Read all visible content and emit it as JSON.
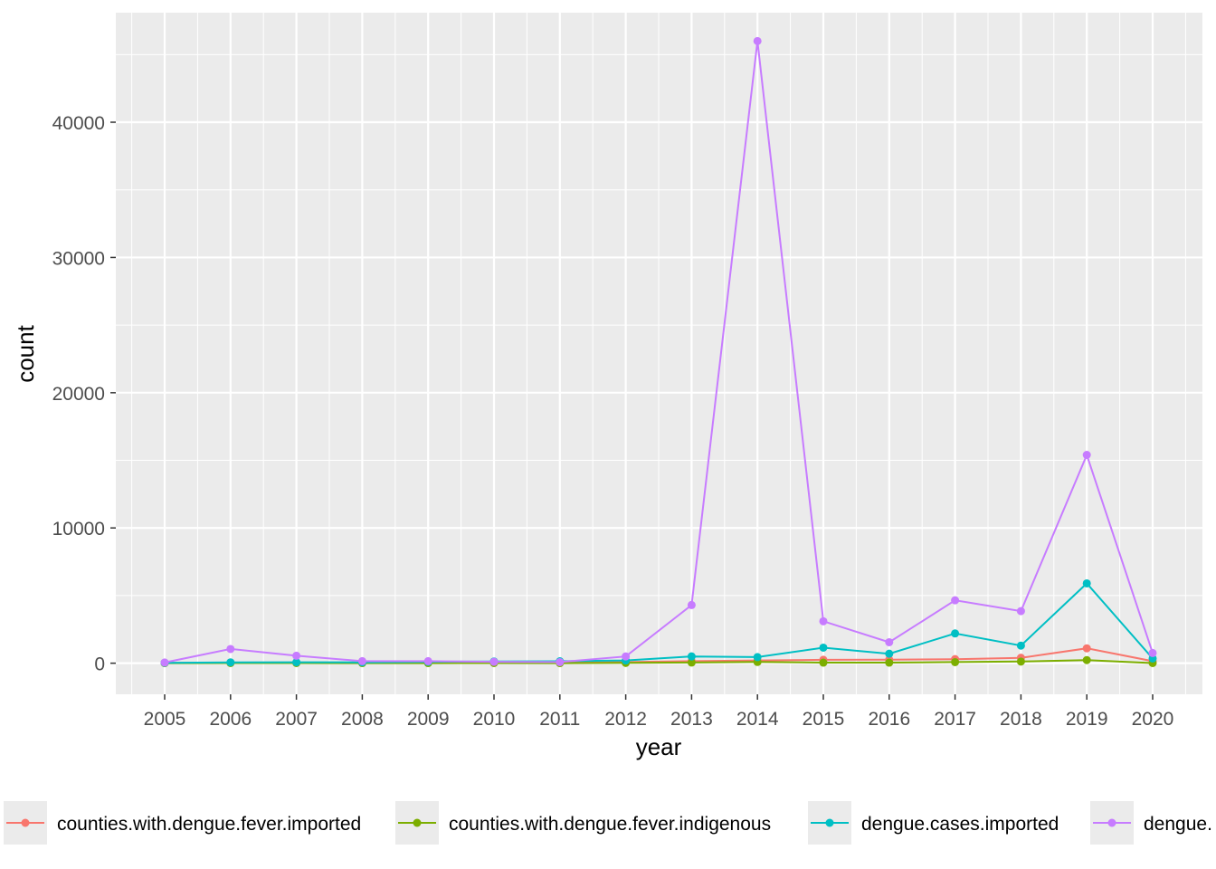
{
  "chart_data": {
    "type": "line",
    "xlabel": "year",
    "ylabel": "count",
    "x": [
      "2005",
      "2006",
      "2007",
      "2008",
      "2009",
      "2010",
      "2011",
      "2012",
      "2013",
      "2014",
      "2015",
      "2016",
      "2017",
      "2018",
      "2019",
      "2020"
    ],
    "ylim": [
      -2300,
      48100
    ],
    "yticks": [
      0,
      10000,
      20000,
      30000,
      40000
    ],
    "grid": true,
    "legend_position": "bottom",
    "series": [
      {
        "name": "counties.with.dengue.fever.imported",
        "color": "#F8766D",
        "values": [
          20,
          40,
          50,
          40,
          40,
          50,
          40,
          80,
          150,
          200,
          250,
          260,
          300,
          400,
          1100,
          150
        ]
      },
      {
        "name": "counties.with.dengue.fever.indigenous",
        "color": "#7CAE00",
        "values": [
          5,
          10,
          10,
          5,
          5,
          10,
          5,
          20,
          50,
          90,
          40,
          40,
          80,
          120,
          230,
          10
        ]
      },
      {
        "name": "dengue.cases.imported",
        "color": "#00BFC4",
        "values": [
          30,
          60,
          70,
          60,
          100,
          130,
          140,
          200,
          500,
          450,
          1150,
          700,
          2200,
          1300,
          5900,
          350
        ]
      },
      {
        "name": "dengue.",
        "color": "#C77CFF",
        "values": [
          50,
          1050,
          550,
          150,
          150,
          100,
          80,
          500,
          4300,
          46000,
          3100,
          1550,
          4650,
          3850,
          15400,
          750
        ]
      }
    ]
  }
}
